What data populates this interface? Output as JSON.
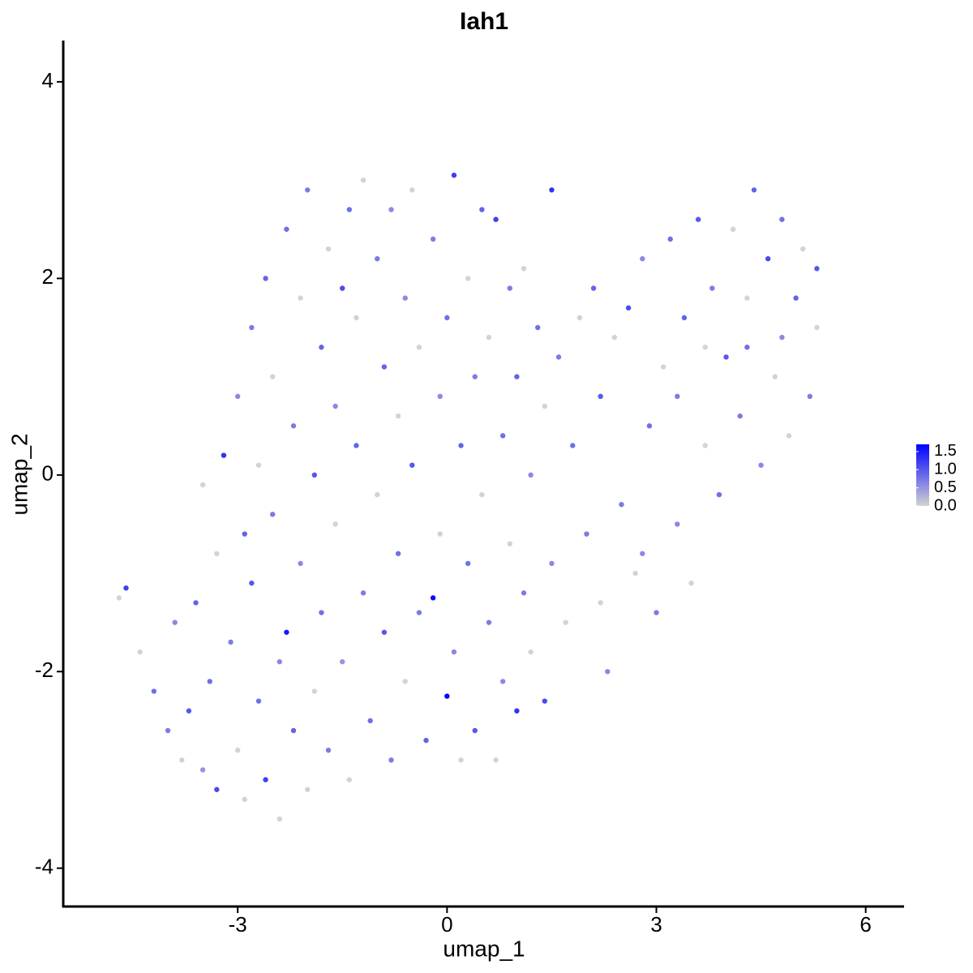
{
  "chart_data": {
    "type": "scatter",
    "title": "Iah1",
    "x_label": "umap_1",
    "y_label": "umap_2",
    "xlim": [
      -5.5,
      6.55
    ],
    "ylim": [
      -4.39,
      4.42
    ],
    "xticks": [
      -3,
      0,
      3,
      6
    ],
    "yticks": [
      -4,
      -2,
      0,
      2,
      4
    ],
    "color_low": "#d3d3d3",
    "color_high": "#0000ff",
    "clim": [
      0,
      1.7
    ],
    "cticks": [
      {
        "value": 0,
        "label": "0.0"
      },
      0.5,
      {
        "value": 1,
        "label": "1.0"
      },
      1.5
    ],
    "x": [
      -4.7,
      -4.6,
      -4.4,
      -4.2,
      -4.0,
      -3.9,
      -3.8,
      -3.7,
      -3.6,
      -3.5,
      -3.5,
      -3.4,
      -3.3,
      -3.3,
      -3.2,
      -3.1,
      -3.0,
      -3.0,
      -2.9,
      -2.9,
      -2.8,
      -2.8,
      -2.7,
      -2.7,
      -2.6,
      -2.6,
      -2.5,
      -2.5,
      -2.4,
      -2.4,
      -2.3,
      -2.3,
      -2.2,
      -2.2,
      -2.1,
      -2.1,
      -2.0,
      -2.0,
      -1.9,
      -1.9,
      -1.8,
      -1.8,
      -1.7,
      -1.7,
      -1.6,
      -1.6,
      -1.5,
      -1.5,
      -1.4,
      -1.4,
      -1.3,
      -1.3,
      -1.2,
      -1.2,
      -1.1,
      -1.0,
      -1.0,
      -0.9,
      -0.9,
      -0.8,
      -0.8,
      -0.7,
      -0.7,
      -0.6,
      -0.6,
      -0.5,
      -0.5,
      -0.4,
      -0.4,
      -0.3,
      -0.2,
      -0.2,
      -0.1,
      -0.1,
      0.0,
      0.0,
      0.1,
      0.1,
      0.2,
      0.2,
      0.3,
      0.3,
      0.4,
      0.4,
      0.5,
      0.5,
      0.6,
      0.6,
      0.7,
      0.7,
      0.8,
      0.8,
      0.9,
      0.9,
      1.0,
      1.0,
      1.1,
      1.1,
      1.2,
      1.2,
      1.3,
      1.4,
      1.4,
      1.5,
      1.5,
      1.6,
      1.7,
      1.8,
      1.9,
      2.0,
      2.1,
      2.2,
      2.2,
      2.3,
      2.4,
      2.5,
      2.6,
      2.7,
      2.8,
      2.9,
      3.0,
      3.1,
      3.2,
      3.3,
      3.4,
      3.5,
      3.6,
      3.7,
      3.8,
      3.9,
      4.0,
      4.1,
      4.2,
      4.3,
      4.4,
      4.5,
      4.6,
      4.7,
      4.8,
      4.9,
      5.0,
      5.1,
      5.2,
      5.3,
      5.3,
      4.8,
      4.3,
      3.7,
      3.3,
      2.8
    ],
    "y": [
      -1.25,
      -1.15,
      -1.8,
      -2.2,
      -2.6,
      -1.5,
      -2.9,
      -2.4,
      -1.3,
      -3.0,
      -0.1,
      -2.1,
      -0.8,
      -3.2,
      0.2,
      -1.7,
      -2.8,
      0.8,
      -0.6,
      -3.3,
      1.5,
      -1.1,
      -2.3,
      0.1,
      2.0,
      -3.1,
      -0.4,
      1.0,
      -1.9,
      -3.5,
      2.5,
      -1.6,
      0.5,
      -2.6,
      1.8,
      -0.9,
      -3.2,
      2.9,
      0.0,
      -2.2,
      1.3,
      -1.4,
      2.3,
      -2.8,
      0.7,
      -0.5,
      1.9,
      -1.9,
      2.7,
      -3.1,
      0.3,
      1.6,
      -1.2,
      3.0,
      -2.5,
      2.2,
      -0.2,
      1.1,
      -1.6,
      2.7,
      -2.9,
      0.6,
      -0.8,
      1.8,
      -2.1,
      2.9,
      0.1,
      -1.4,
      1.3,
      -2.7,
      -1.25,
      2.4,
      0.8,
      -0.6,
      -2.25,
      1.6,
      3.05,
      -1.8,
      0.3,
      -2.9,
      2.0,
      -0.9,
      1.0,
      -2.6,
      2.7,
      -0.2,
      -1.5,
      1.4,
      2.6,
      -2.9,
      0.4,
      -2.1,
      1.9,
      -0.7,
      -2.4,
      1.0,
      2.1,
      -1.2,
      0.0,
      -1.8,
      1.5,
      -2.3,
      0.7,
      2.9,
      -0.9,
      1.2,
      -1.5,
      0.3,
      1.6,
      -0.6,
      1.9,
      -1.3,
      0.8,
      -2.0,
      1.4,
      -0.3,
      1.7,
      -1.0,
      2.2,
      0.5,
      -1.4,
      1.1,
      2.4,
      -0.5,
      1.6,
      -1.1,
      2.6,
      0.3,
      1.9,
      -0.2,
      1.2,
      2.5,
      0.6,
      1.8,
      2.9,
      0.1,
      2.2,
      1.0,
      2.6,
      0.4,
      1.8,
      2.3,
      0.8,
      2.1,
      1.5,
      1.4,
      1.3,
      1.3,
      0.8,
      -0.8
    ],
    "values": [
      0,
      1.2,
      0,
      0.8,
      0.7,
      0.6,
      0,
      1.0,
      0.9,
      0.5,
      0,
      0.8,
      0,
      1.1,
      1.3,
      0.7,
      0,
      0.6,
      0.9,
      0,
      0.7,
      1.0,
      0.8,
      0,
      0.9,
      1.2,
      0.7,
      0,
      0.6,
      0,
      0.8,
      1.5,
      0.7,
      0.9,
      0,
      0.6,
      0,
      0.7,
      1.0,
      0,
      0.9,
      0.8,
      0,
      0.7,
      0.6,
      0,
      1.1,
      0.5,
      0.8,
      0,
      0.9,
      0,
      0.7,
      0,
      0.8,
      0.7,
      0,
      0.9,
      1.0,
      0.6,
      0.7,
      0,
      0.8,
      0.6,
      0,
      0,
      1.0,
      0.7,
      0,
      0.9,
      1.6,
      0.7,
      0.6,
      0,
      1.7,
      0.8,
      1.2,
      0.6,
      0.9,
      0,
      0,
      0.8,
      0.7,
      1.0,
      0.9,
      0,
      0.7,
      0,
      1.2,
      0,
      0.8,
      0.6,
      0.7,
      0,
      1.3,
      0.9,
      0,
      0.7,
      0.6,
      0,
      0.8,
      1.1,
      0,
      1.3,
      0.6,
      0.7,
      0,
      0.8,
      0,
      0.7,
      0.9,
      0,
      1.0,
      0.6,
      0,
      0.7,
      1.1,
      0,
      0.6,
      0.8,
      0.7,
      0,
      0.8,
      0.6,
      0.9,
      0,
      1.0,
      0,
      0.7,
      0.8,
      1.0,
      0,
      0.7,
      0,
      0.9,
      0.6,
      1.1,
      0,
      0.8,
      0,
      0.9,
      0,
      0.7,
      1.0,
      0,
      0.6,
      0.8,
      0,
      0.7,
      0.6
    ]
  }
}
